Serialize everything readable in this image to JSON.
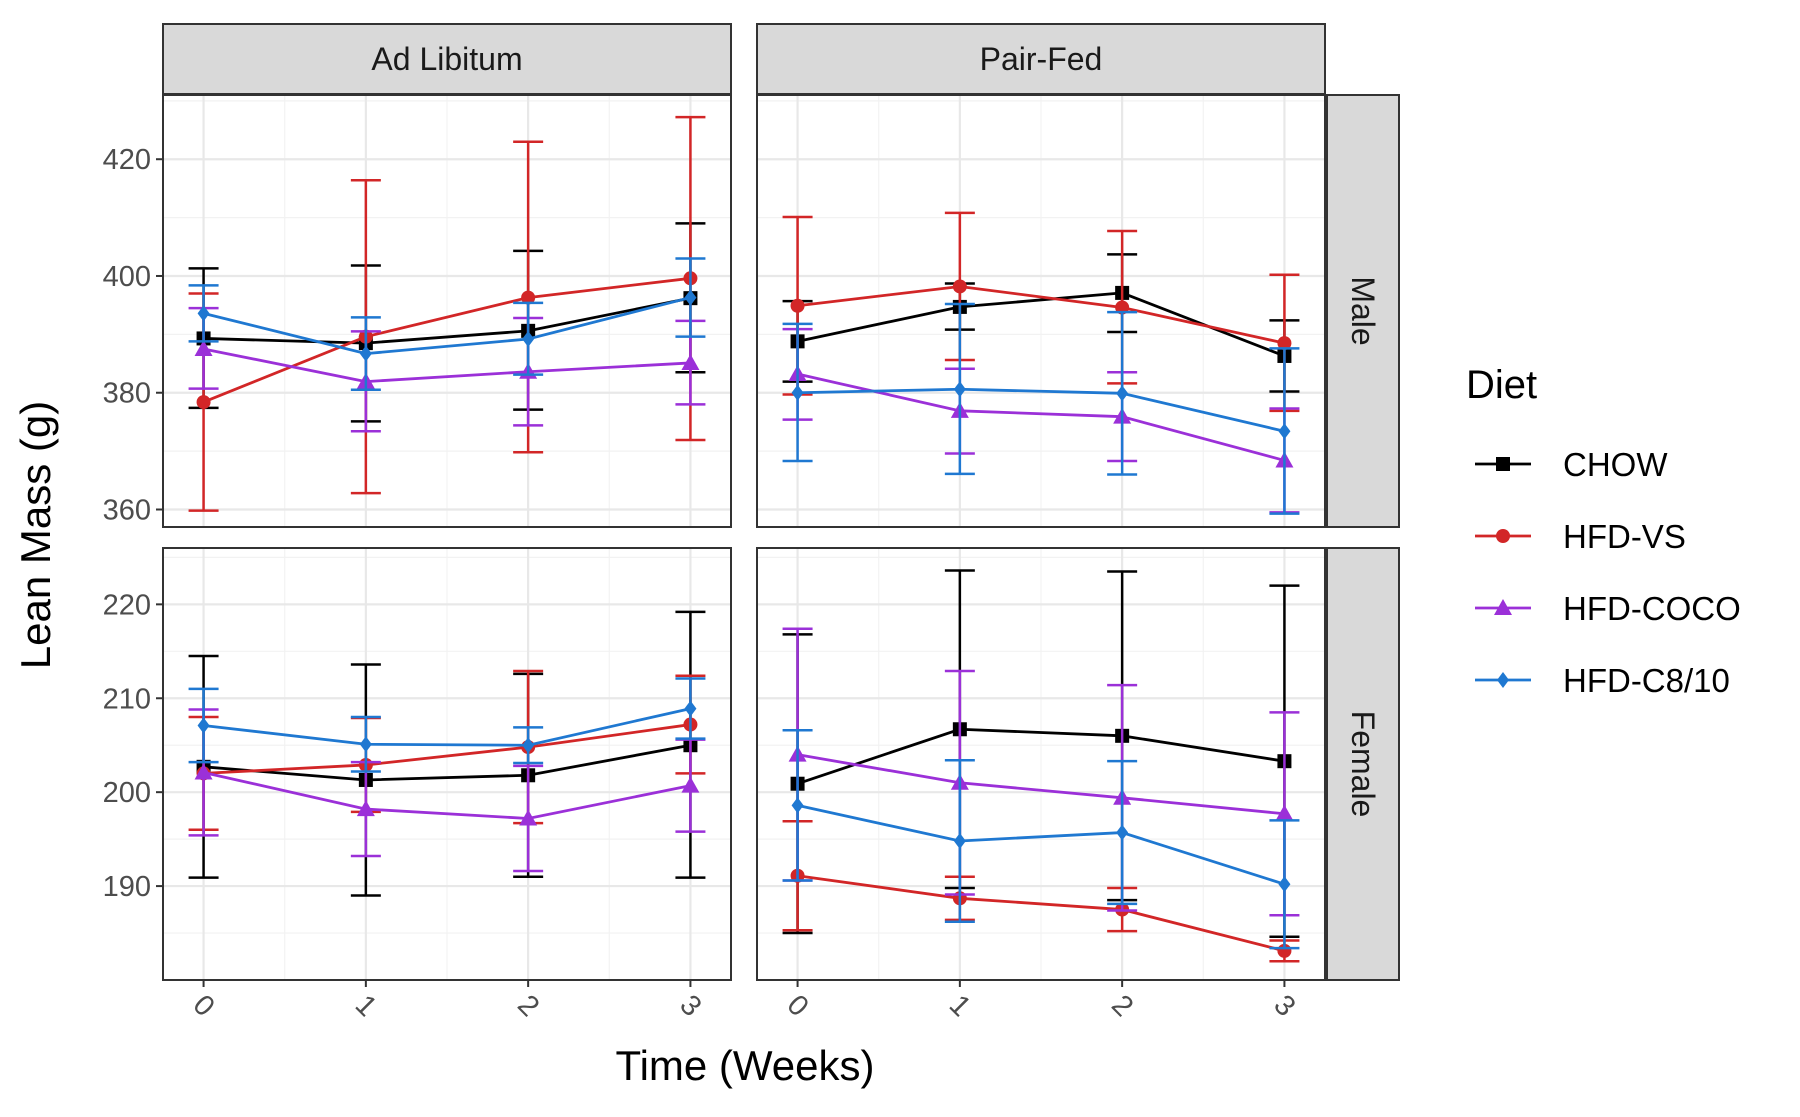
{
  "chart_data": {
    "type": "line",
    "xlabel": "Time (Weeks)",
    "ylabel": "Lean Mass (g)",
    "x": [
      0,
      1,
      2,
      3
    ],
    "x_tick_labels": [
      "0",
      "1",
      "2",
      "3"
    ],
    "grid": true,
    "legend": {
      "title": "Diet",
      "position": "right",
      "entries": [
        {
          "name": "CHOW",
          "color": "#000000",
          "marker": "square"
        },
        {
          "name": "HFD-VS",
          "color": "#d22627",
          "marker": "circle"
        },
        {
          "name": "HFD-COCO",
          "color": "#9b30d8",
          "marker": "triangle"
        },
        {
          "name": "HFD-C8/10",
          "color": "#1f78d1",
          "marker": "diamond"
        }
      ]
    },
    "columns": [
      "Ad Libitum",
      "Pair-Fed"
    ],
    "rows": [
      {
        "label": "Male",
        "ylim": [
          357,
          431
        ],
        "yticks": [
          360,
          380,
          400,
          420
        ]
      },
      {
        "label": "Female",
        "ylim": [
          180,
          226
        ],
        "yticks": [
          190,
          200,
          210,
          220
        ]
      }
    ],
    "panels": [
      {
        "column": "Ad Libitum",
        "row": "Male",
        "series": [
          {
            "name": "CHOW",
            "values": [
              389.3,
              388.5,
              390.6,
              396.2
            ],
            "lower": [
              377.4,
              375.1,
              377.1,
              383.5
            ],
            "upper": [
              401.3,
              401.8,
              404.3,
              409.0
            ]
          },
          {
            "name": "HFD-VS",
            "values": [
              378.4,
              389.6,
              396.3,
              399.6
            ],
            "lower": [
              359.8,
              362.8,
              369.8,
              371.9
            ],
            "upper": [
              397.0,
              416.4,
              423.0,
              427.2
            ]
          },
          {
            "name": "HFD-COCO",
            "values": [
              387.5,
              381.9,
              383.6,
              385.1
            ],
            "lower": [
              380.7,
              373.4,
              374.4,
              378.0
            ],
            "upper": [
              394.5,
              390.5,
              392.8,
              392.3
            ]
          },
          {
            "name": "HFD-C8/10",
            "values": [
              393.6,
              386.7,
              389.2,
              396.3
            ],
            "lower": [
              388.8,
              380.5,
              383.1,
              389.6
            ],
            "upper": [
              398.4,
              392.9,
              395.4,
              403.0
            ]
          }
        ]
      },
      {
        "column": "Pair-Fed",
        "row": "Male",
        "series": [
          {
            "name": "CHOW",
            "values": [
              388.8,
              394.7,
              397.1,
              386.3
            ],
            "lower": [
              381.9,
              390.8,
              390.4,
              380.2
            ],
            "upper": [
              395.7,
              398.7,
              403.7,
              392.4
            ]
          },
          {
            "name": "HFD-VS",
            "values": [
              394.9,
              398.2,
              394.6,
              388.5
            ],
            "lower": [
              379.7,
              385.6,
              381.6,
              376.9
            ],
            "upper": [
              410.1,
              410.8,
              407.7,
              400.2
            ]
          },
          {
            "name": "HFD-COCO",
            "values": [
              383.2,
              376.9,
              375.9,
              368.4
            ],
            "lower": [
              375.4,
              369.6,
              368.3,
              359.5
            ],
            "upper": [
              390.9,
              384.1,
              383.5,
              377.3
            ]
          },
          {
            "name": "HFD-C8/10",
            "values": [
              380.0,
              380.6,
              379.9,
              373.4
            ],
            "lower": [
              368.3,
              366.1,
              366.0,
              359.3
            ],
            "upper": [
              391.8,
              395.2,
              393.8,
              387.6
            ]
          }
        ]
      },
      {
        "column": "Ad Libitum",
        "row": "Female",
        "series": [
          {
            "name": "CHOW",
            "values": [
              202.7,
              201.3,
              201.8,
              205.0
            ],
            "lower": [
              190.9,
              189.0,
              191.0,
              190.9
            ],
            "upper": [
              214.5,
              213.6,
              212.6,
              219.2
            ]
          },
          {
            "name": "HFD-VS",
            "values": [
              202.0,
              202.9,
              204.8,
              207.2
            ],
            "lower": [
              196.0,
              197.9,
              196.7,
              202.0
            ],
            "upper": [
              208.0,
              207.9,
              212.9,
              212.4
            ]
          },
          {
            "name": "HFD-COCO",
            "values": [
              202.1,
              198.2,
              197.2,
              200.7
            ],
            "lower": [
              195.4,
              193.2,
              191.6,
              195.8
            ],
            "upper": [
              208.8,
              203.2,
              202.8,
              205.6
            ]
          },
          {
            "name": "HFD-C8/10",
            "values": [
              207.1,
              205.1,
              205.0,
              208.9
            ],
            "lower": [
              203.2,
              202.2,
              203.1,
              205.7
            ],
            "upper": [
              211.0,
              208.0,
              206.9,
              212.1
            ]
          }
        ]
      },
      {
        "column": "Pair-Fed",
        "row": "Female",
        "series": [
          {
            "name": "CHOW",
            "values": [
              200.9,
              206.7,
              206.0,
              203.3
            ],
            "lower": [
              185.0,
              189.8,
              188.5,
              184.6
            ],
            "upper": [
              216.8,
              223.6,
              223.5,
              222.0
            ]
          },
          {
            "name": "HFD-VS",
            "values": [
              191.1,
              188.7,
              187.5,
              183.1
            ],
            "lower": [
              185.3,
              186.4,
              185.2,
              182.0
            ],
            "upper": [
              196.9,
              191.0,
              189.8,
              184.2
            ]
          },
          {
            "name": "HFD-COCO",
            "values": [
              204.0,
              201.0,
              199.4,
              197.7
            ],
            "lower": [
              190.6,
              189.1,
              187.4,
              186.9
            ],
            "upper": [
              217.4,
              212.9,
              211.4,
              208.5
            ]
          },
          {
            "name": "HFD-C8/10",
            "values": [
              198.6,
              194.8,
              195.7,
              190.2
            ],
            "lower": [
              190.6,
              186.2,
              188.1,
              183.4
            ],
            "upper": [
              206.6,
              203.4,
              203.3,
              197.0
            ]
          }
        ]
      }
    ]
  }
}
